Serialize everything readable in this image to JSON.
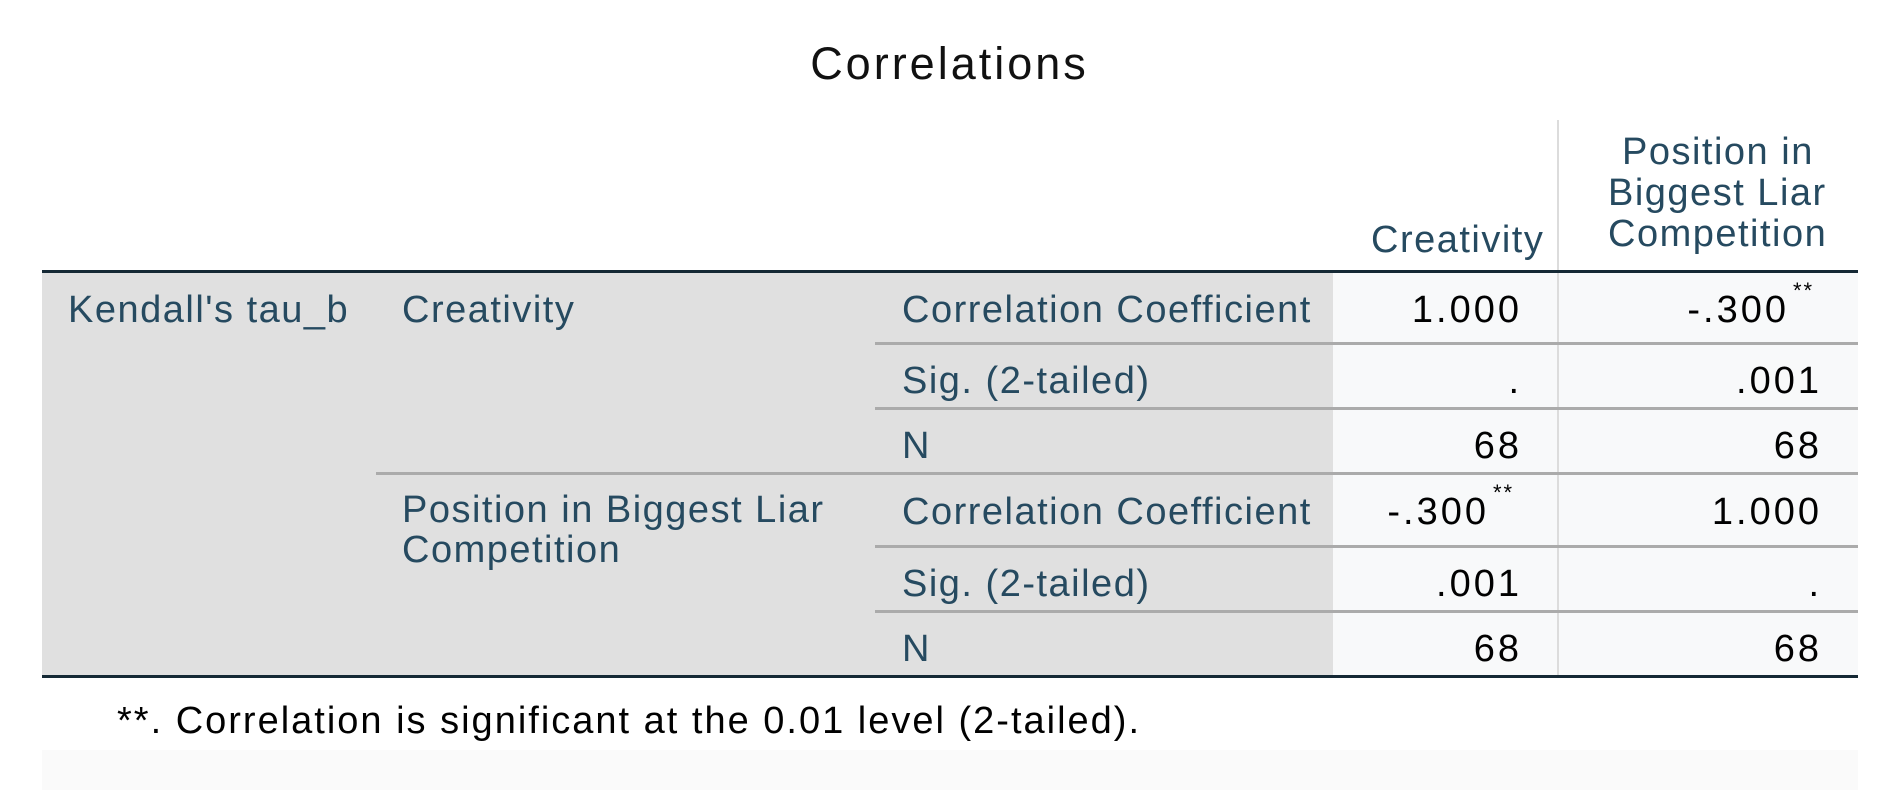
{
  "title": "Correlations",
  "columns": {
    "creativity": "Creativity",
    "position_line1": "Position in",
    "position_line2": "Biggest Liar",
    "position_line3": "Competition"
  },
  "method": "Kendall's tau_b",
  "rows": [
    {
      "variable": "Creativity",
      "stats": [
        {
          "label": "Correlation Coefficient",
          "creativity": "1.000",
          "position": "-.300",
          "position_sup": "**"
        },
        {
          "label": "Sig. (2-tailed)",
          "creativity": ".",
          "position": ".001"
        },
        {
          "label": "N",
          "creativity": "68",
          "position": "68"
        }
      ]
    },
    {
      "variable_line1": "Position in Biggest Liar",
      "variable_line2": "Competition",
      "stats": [
        {
          "label": "Correlation Coefficient",
          "creativity": "-.300",
          "creativity_sup": "**",
          "position": "1.000"
        },
        {
          "label": "Sig. (2-tailed)",
          "creativity": ".001",
          "position": "."
        },
        {
          "label": "N",
          "creativity": "68",
          "position": "68"
        }
      ]
    }
  ],
  "footnote": "**. Correlation is significant at the 0.01 level (2-tailed)."
}
